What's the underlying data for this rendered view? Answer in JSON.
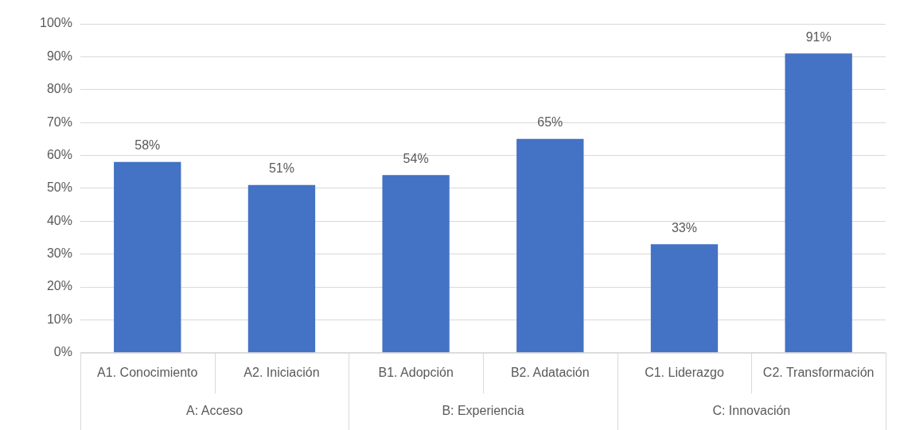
{
  "chart_data": {
    "type": "bar",
    "categories": [
      "A1. Conocimiento",
      "A2. Iniciación",
      "B1. Adopción",
      "B2. Adatación",
      "C1. Liderazgo",
      "C2. Transformación"
    ],
    "values": [
      58,
      51,
      54,
      65,
      33,
      91
    ],
    "color": "#4472c4",
    "ylim": [
      0,
      100
    ],
    "yticks": [
      {
        "value": 0,
        "label": "0%"
      },
      {
        "value": 10,
        "label": "10%"
      },
      {
        "value": 20,
        "label": "20%"
      },
      {
        "value": 30,
        "label": "30%"
      },
      {
        "value": 40,
        "label": "40%"
      },
      {
        "value": 50,
        "label": "50%"
      },
      {
        "value": 60,
        "label": "60%"
      },
      {
        "value": 70,
        "label": "70%"
      },
      {
        "value": 80,
        "label": "80%"
      },
      {
        "value": 90,
        "label": "90%"
      },
      {
        "value": 100,
        "label": "100%"
      }
    ],
    "value_labels": [
      "58%",
      "51%",
      "54%",
      "65%",
      "33%",
      "91%"
    ],
    "annotations": [
      "A: Acceso",
      "B: Experiencia",
      "C: Innovación"
    ],
    "grid": "y",
    "legend": false
  }
}
